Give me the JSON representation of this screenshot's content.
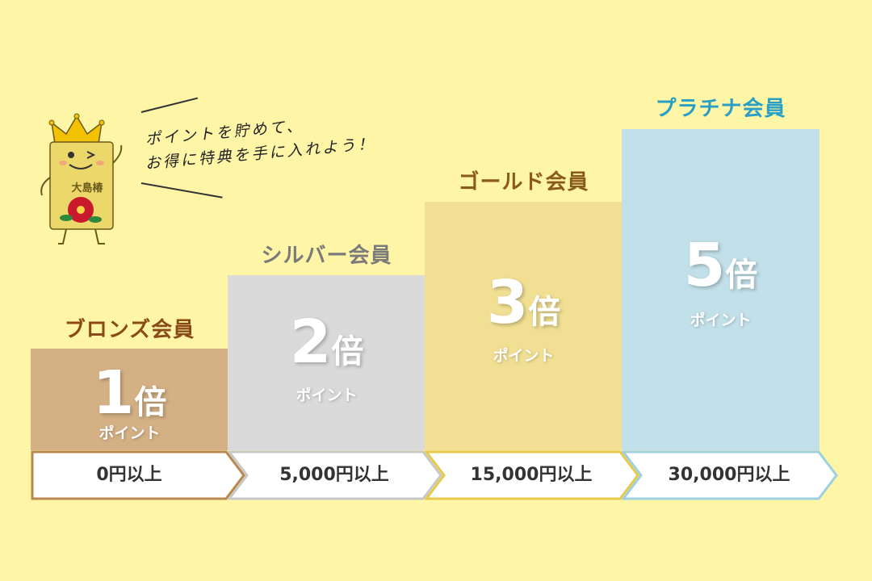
{
  "mascot": {
    "name": "大島椿",
    "speech_line1": "ポイントを貯めて、",
    "speech_line2": "お得に特典を手に入れよう！"
  },
  "tiers": [
    {
      "title": "ブロンズ会員",
      "multiplier": "1",
      "unit": "倍",
      "points_label": "ポイント",
      "threshold": "0円以上",
      "title_color": "#8a4a16",
      "box_color": "#d4b085",
      "border_color": "#b8884e"
    },
    {
      "title": "シルバー会員",
      "multiplier": "2",
      "unit": "倍",
      "points_label": "ポイント",
      "threshold": "5,000円以上",
      "title_color": "#7a7a7a",
      "box_color": "#dadada",
      "border_color": "#c8c8c8"
    },
    {
      "title": "ゴールド会員",
      "multiplier": "3",
      "unit": "倍",
      "points_label": "ポイント",
      "threshold": "15,000円以上",
      "title_color": "#8a5a1c",
      "box_color": "#f1df93",
      "border_color": "#e7c94c"
    },
    {
      "title": "プラチナ会員",
      "multiplier": "5",
      "unit": "倍",
      "points_label": "ポイント",
      "threshold": "30,000円以上",
      "title_color": "#2a9fc5",
      "box_color": "#c2e0e9",
      "border_color": "#9dd1e2"
    }
  ]
}
